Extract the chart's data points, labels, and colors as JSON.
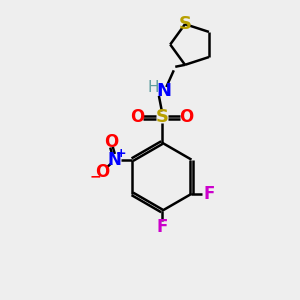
{
  "bg_color": "#eeeeee",
  "bond_color": "#000000",
  "S_color": "#b8a000",
  "N_color": "#0000ff",
  "O_color": "#ff0000",
  "F_color": "#cc00cc",
  "H_color": "#5f9ea0",
  "bond_width": 1.8,
  "figsize": [
    3.0,
    3.0
  ],
  "dpi": 100,
  "xlim": [
    0,
    10
  ],
  "ylim": [
    0,
    10
  ]
}
